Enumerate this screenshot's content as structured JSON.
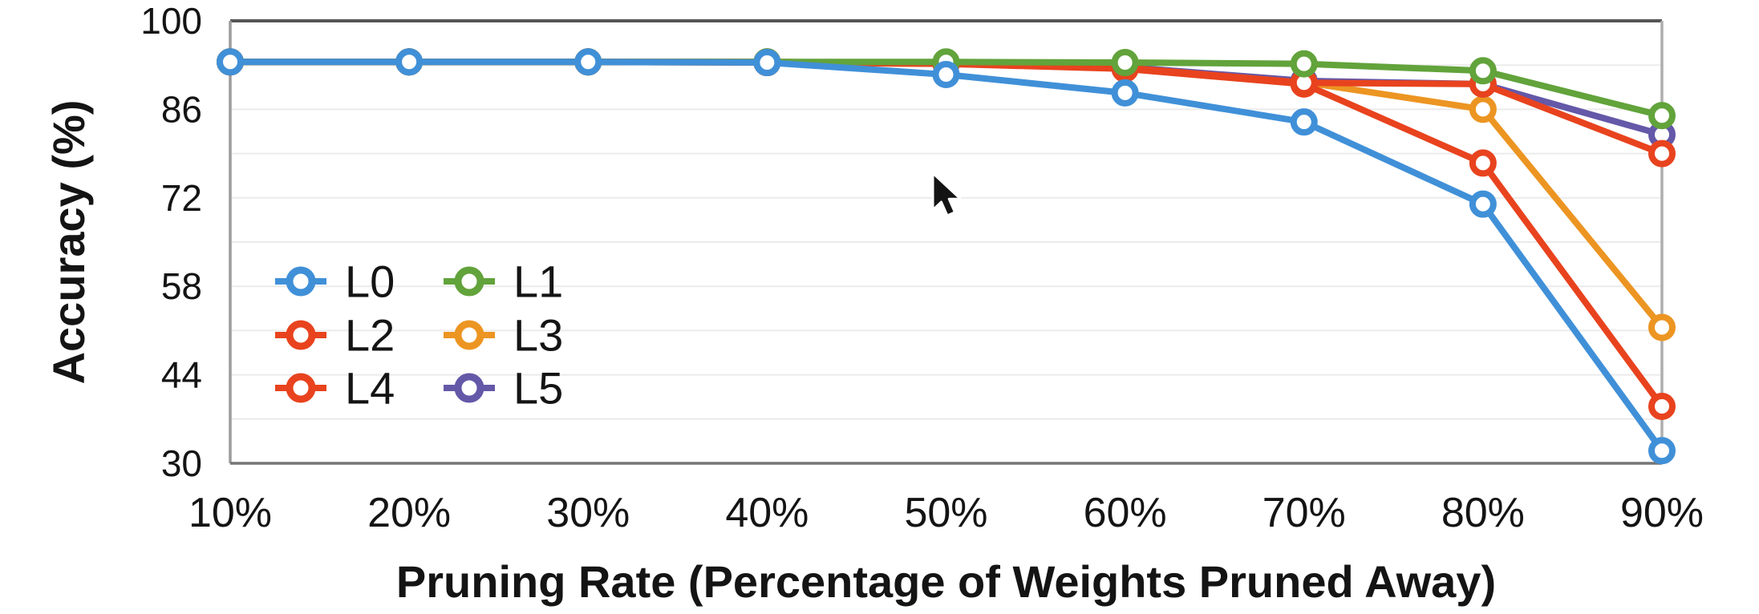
{
  "figure": {
    "background": "#ffffff",
    "text_color": "#141414"
  },
  "chart_data": {
    "type": "line",
    "title": "",
    "xlabel": "Pruning Rate (Percentage of Weights Pruned Away)",
    "ylabel": "Accuracy (%)",
    "categories": [
      "10%",
      "20%",
      "30%",
      "40%",
      "50%",
      "60%",
      "70%",
      "80%",
      "90%"
    ],
    "y_tick_labels": [
      "100",
      "86",
      "72",
      "58",
      "44",
      "30"
    ],
    "y_tick_values": [
      100,
      86,
      72,
      58,
      44,
      30
    ],
    "ylim": [
      30,
      100
    ],
    "grid": {
      "horizontal_minor_step": 7,
      "color": "#ebebeb",
      "vertical": "off"
    },
    "legend": {
      "position": "inside-middle-left",
      "rows": [
        [
          "L0",
          "L1"
        ],
        [
          "L2",
          "L3"
        ],
        [
          "L4",
          "L5"
        ]
      ]
    },
    "axis_colors": {
      "top": "#565656",
      "left": "#9b9b9b",
      "right": "#adadad",
      "bottom": "#757575"
    },
    "marker_style": "hollow-circle",
    "series": [
      {
        "name": "L0",
        "color": "#4090D8",
        "values": [
          93.5,
          93.5,
          93.5,
          93.4,
          91.5,
          88.6,
          84.0,
          71.0,
          32.0
        ]
      },
      {
        "name": "L1",
        "color": "#62A33B",
        "values": [
          93.5,
          93.5,
          93.5,
          93.5,
          93.5,
          93.4,
          93.2,
          92.1,
          85.0
        ]
      },
      {
        "name": "L2",
        "color": "#E8431E",
        "values": [
          93.5,
          93.5,
          93.5,
          93.4,
          93.2,
          92.4,
          90.0,
          77.5,
          39.0
        ]
      },
      {
        "name": "L3",
        "color": "#EC9522",
        "values": [
          93.5,
          93.5,
          93.5,
          93.4,
          93.2,
          92.5,
          90.3,
          86.0,
          51.5
        ]
      },
      {
        "name": "L4",
        "color": "#E8431E",
        "values": [
          93.5,
          93.5,
          93.5,
          93.5,
          93.3,
          92.6,
          90.2,
          90.0,
          79.0
        ]
      },
      {
        "name": "L5",
        "color": "#6458A8",
        "values": [
          93.5,
          93.5,
          93.5,
          93.5,
          93.3,
          92.7,
          90.5,
          90.0,
          82.0
        ]
      }
    ],
    "draw_order": [
      "L3",
      "L5",
      "L2",
      "L4",
      "L1",
      "L0"
    ]
  },
  "cursor": {
    "type": "arrow"
  }
}
